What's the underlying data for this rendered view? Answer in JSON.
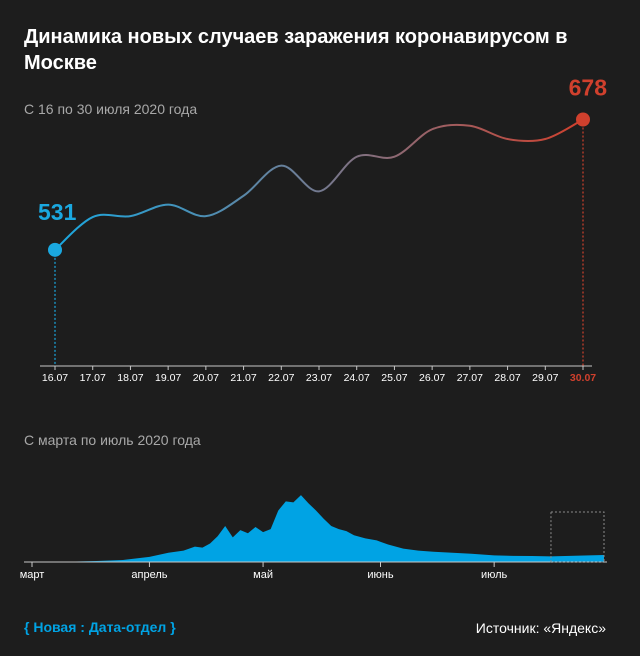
{
  "title": "Динамика новых случаев заражения коронавирусом в Москве",
  "charts": {
    "top_subtitle": "С 16 по 30 июля 2020 года",
    "bottom_subtitle": "С марта по июль 2020 года"
  },
  "footer": {
    "brand": "{ Новая : Дата-отдел }",
    "source": "Источник: «Яндекс»"
  },
  "colors": {
    "start": "#1aa8e0",
    "end": "#d0402d",
    "axis": "#c8c8c8",
    "area": "#00a3e4"
  },
  "chart_data": [
    {
      "type": "line",
      "categories": [
        "16.07",
        "17.07",
        "18.07",
        "19.07",
        "20.07",
        "21.07",
        "22.07",
        "23.07",
        "24.07",
        "25.07",
        "26.07",
        "27.07",
        "28.07",
        "29.07",
        "30.07"
      ],
      "values": [
        531,
        568,
        569,
        582,
        569,
        592,
        626,
        597,
        636,
        636,
        667,
        671,
        656,
        656,
        678
      ],
      "ylim": [
        400,
        700
      ],
      "labels": {
        "first": "531",
        "last": "678"
      }
    },
    {
      "type": "area",
      "x_ticks": [
        "март",
        "апрель",
        "май",
        "июнь",
        "июль"
      ],
      "ylim": [
        0,
        7000
      ],
      "x": [
        "2020-03-01",
        "2020-03-10",
        "2020-03-18",
        "2020-03-25",
        "2020-04-01",
        "2020-04-06",
        "2020-04-10",
        "2020-04-13",
        "2020-04-15",
        "2020-04-17",
        "2020-04-19",
        "2020-04-21",
        "2020-04-23",
        "2020-04-25",
        "2020-04-27",
        "2020-04-29",
        "2020-05-01",
        "2020-05-03",
        "2020-05-05",
        "2020-05-07",
        "2020-05-09",
        "2020-05-11",
        "2020-05-13",
        "2020-05-15",
        "2020-05-17",
        "2020-05-19",
        "2020-05-21",
        "2020-05-23",
        "2020-05-25",
        "2020-05-28",
        "2020-05-31",
        "2020-06-03",
        "2020-06-07",
        "2020-06-11",
        "2020-06-15",
        "2020-06-20",
        "2020-06-25",
        "2020-07-01",
        "2020-07-06",
        "2020-07-11",
        "2020-07-16",
        "2020-07-21",
        "2020-07-26",
        "2020-07-30"
      ],
      "values": [
        5,
        30,
        100,
        200,
        500,
        900,
        1100,
        1500,
        1400,
        1800,
        2500,
        3500,
        2400,
        3100,
        2800,
        3400,
        2900,
        3200,
        5000,
        5900,
        5800,
        6500,
        5700,
        5000,
        4200,
        3500,
        3200,
        3000,
        2600,
        2300,
        2100,
        1700,
        1300,
        1100,
        1000,
        900,
        800,
        650,
        600,
        580,
        550,
        600,
        640,
        680
      ]
    }
  ]
}
